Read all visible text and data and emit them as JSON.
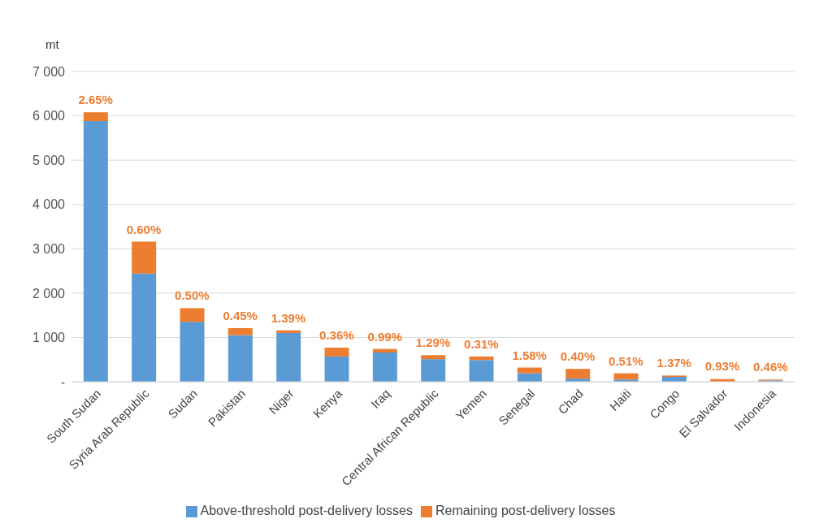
{
  "chart_data": {
    "type": "bar",
    "stacked": true,
    "ylabel": "mt",
    "categories": [
      "South Sudan",
      "Syria Arab Republic",
      "Sudan",
      "Pakistan",
      "Niger",
      "Kenya",
      "Iraq",
      "Central African Republic",
      "Yemen",
      "Senegal",
      "Chad",
      "Haiti",
      "Congo",
      "El Salvador",
      "Indonesia"
    ],
    "series": [
      {
        "name": "Above-threshold post-delivery losses",
        "color": "#5b9bd5",
        "values": [
          5880,
          2440,
          1350,
          1050,
          1100,
          570,
          660,
          510,
          490,
          190,
          70,
          50,
          110,
          null,
          30
        ]
      },
      {
        "name": "Remaining post-delivery losses",
        "color": "#ed7d31",
        "values": [
          200,
          720,
          310,
          160,
          60,
          200,
          80,
          90,
          80,
          130,
          220,
          140,
          30,
          60,
          20
        ]
      }
    ],
    "annotations": [
      {
        "text": "2.65%",
        "x": "South Sudan",
        "y": 6080
      },
      {
        "text": "0.60%",
        "x": "Syria Arab Republic",
        "y": 3160
      },
      {
        "text": "0.50%",
        "x": "Sudan",
        "y": 1660
      },
      {
        "text": "0.45%",
        "x": "Pakistan",
        "y": 1210
      },
      {
        "text": "1.39%",
        "x": "Niger",
        "y": 1160
      },
      {
        "text": "0.36%",
        "x": "Kenya",
        "y": 770
      },
      {
        "text": "0.99%",
        "x": "Iraq",
        "y": 740
      },
      {
        "text": "1.29%",
        "x": "Central African Republic",
        "y": 600
      },
      {
        "text": "0.31%",
        "x": "Yemen",
        "y": 570
      },
      {
        "text": "1.58%",
        "x": "Senegal",
        "y": 320
      },
      {
        "text": "0.40%",
        "x": "Chad",
        "y": 290
      },
      {
        "text": "0.51%",
        "x": "Haiti",
        "y": 190
      },
      {
        "text": "1.37%",
        "x": "Congo",
        "y": 140
      },
      {
        "text": "0.93%",
        "x": "El Salvador",
        "y": 80
      },
      {
        "text": "0.46%",
        "x": "Indonesia",
        "y": 50
      }
    ],
    "ylim": [
      0,
      7000
    ],
    "yticks": [
      {
        "value": 0,
        "label": "-"
      },
      {
        "value": 1000,
        "label": "1 000"
      },
      {
        "value": 2000,
        "label": "2 000"
      },
      {
        "value": 3000,
        "label": "3 000"
      },
      {
        "value": 4000,
        "label": "4 000"
      },
      {
        "value": 5000,
        "label": "5 000"
      },
      {
        "value": 6000,
        "label": "6 000"
      },
      {
        "value": 7000,
        "label": "7 000"
      }
    ],
    "grid": "y",
    "legend": "bottom"
  }
}
